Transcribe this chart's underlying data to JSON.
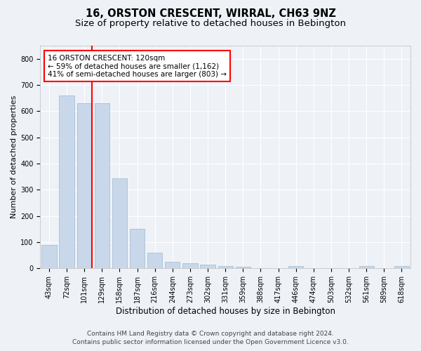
{
  "title": "16, ORSTON CRESCENT, WIRRAL, CH63 9NZ",
  "subtitle": "Size of property relative to detached houses in Bebington",
  "xlabel": "Distribution of detached houses by size in Bebington",
  "ylabel": "Number of detached properties",
  "categories": [
    "43sqm",
    "72sqm",
    "101sqm",
    "129sqm",
    "158sqm",
    "187sqm",
    "216sqm",
    "244sqm",
    "273sqm",
    "302sqm",
    "331sqm",
    "359sqm",
    "388sqm",
    "417sqm",
    "446sqm",
    "474sqm",
    "503sqm",
    "532sqm",
    "561sqm",
    "589sqm",
    "618sqm"
  ],
  "values": [
    88,
    660,
    630,
    630,
    345,
    150,
    60,
    25,
    20,
    15,
    10,
    5,
    0,
    0,
    8,
    0,
    0,
    0,
    8,
    0,
    8
  ],
  "bar_color": "#c8d8ea",
  "bar_edge_color": "#9ab8cc",
  "annotation_text_line1": "16 ORSTON CRESCENT: 120sqm",
  "annotation_text_line2": "← 59% of detached houses are smaller (1,162)",
  "annotation_text_line3": "41% of semi-detached houses are larger (803) →",
  "vline_color": "red",
  "vline_x_index": 2,
  "ylim": [
    0,
    850
  ],
  "yticks": [
    0,
    100,
    200,
    300,
    400,
    500,
    600,
    700,
    800
  ],
  "background_color": "#eef2f7",
  "plot_background_color": "#eef2f7",
  "grid_color": "#ffffff",
  "title_fontsize": 10.5,
  "subtitle_fontsize": 9.5,
  "xlabel_fontsize": 8.5,
  "ylabel_fontsize": 8,
  "tick_fontsize": 7,
  "annotation_fontsize": 7.5,
  "footer_fontsize": 6.5,
  "footer_line1": "Contains HM Land Registry data © Crown copyright and database right 2024.",
  "footer_line2": "Contains public sector information licensed under the Open Government Licence v3.0."
}
